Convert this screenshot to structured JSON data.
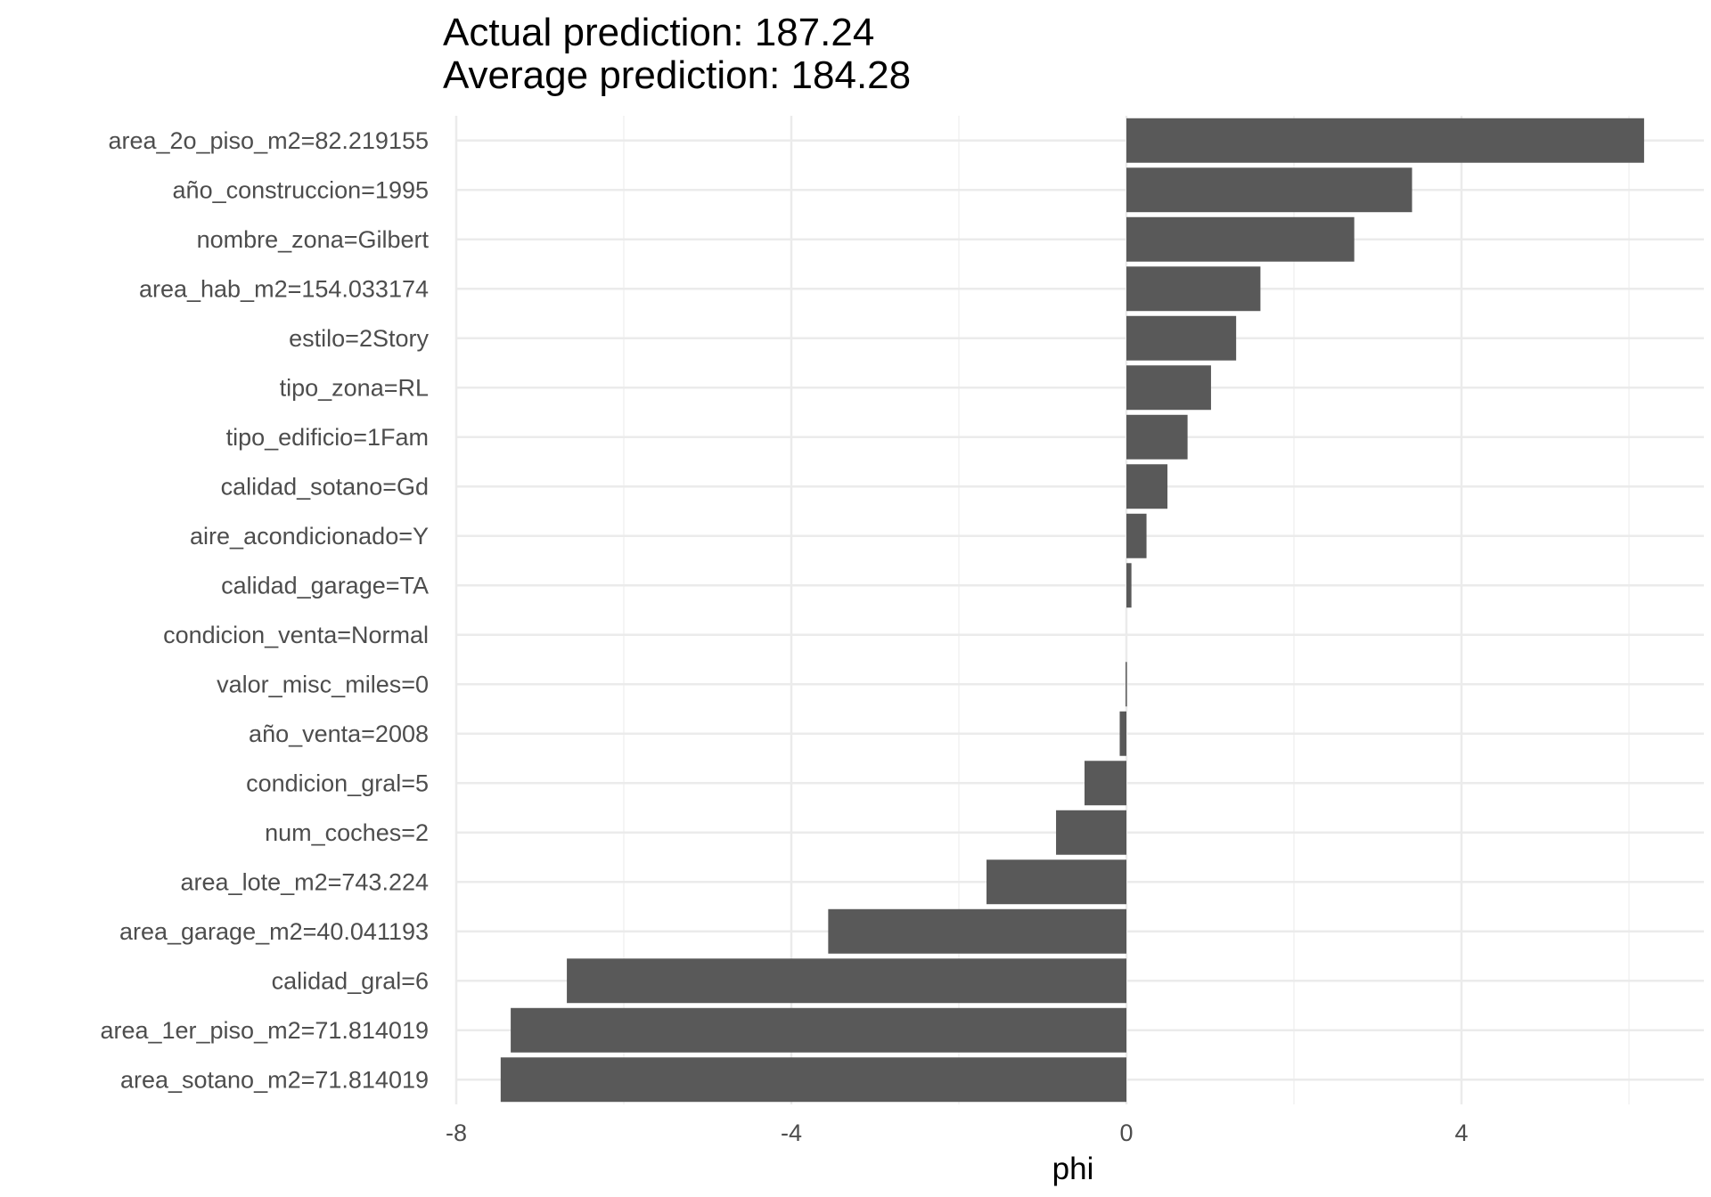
{
  "chart_data": {
    "type": "bar",
    "orientation": "horizontal",
    "title_lines": [
      "Actual prediction: 187.24",
      "Average prediction: 184.28"
    ],
    "xlabel": "phi",
    "ylabel": "",
    "xlim": [
      -8,
      6.5
    ],
    "xticks": [
      -8,
      -4,
      0,
      4
    ],
    "grid": true,
    "bar_color": "#595959",
    "categories": [
      "area_2o_piso_m2=82.219155",
      "año_construccion=1995",
      "nombre_zona=Gilbert",
      "area_hab_m2=154.033174",
      "estilo=2Story",
      "tipo_zona=RL",
      "tipo_edificio=1Fam",
      "calidad_sotano=Gd",
      "aire_acondicionado=Y",
      "calidad_garage=TA",
      "condicion_venta=Normal",
      "valor_misc_miles=0",
      "año_venta=2008",
      "condicion_gral=5",
      "num_coches=2",
      "area_lote_m2=743.224",
      "area_garage_m2=40.041193",
      "calidad_gral=6",
      "area_1er_piso_m2=71.814019",
      "area_sotano_m2=71.814019"
    ],
    "values": [
      6.18,
      3.41,
      2.72,
      1.6,
      1.31,
      1.01,
      0.73,
      0.49,
      0.24,
      0.06,
      0.0,
      -0.01,
      -0.08,
      -0.5,
      -0.84,
      -1.67,
      -3.56,
      -6.68,
      -7.35,
      -7.47
    ]
  }
}
